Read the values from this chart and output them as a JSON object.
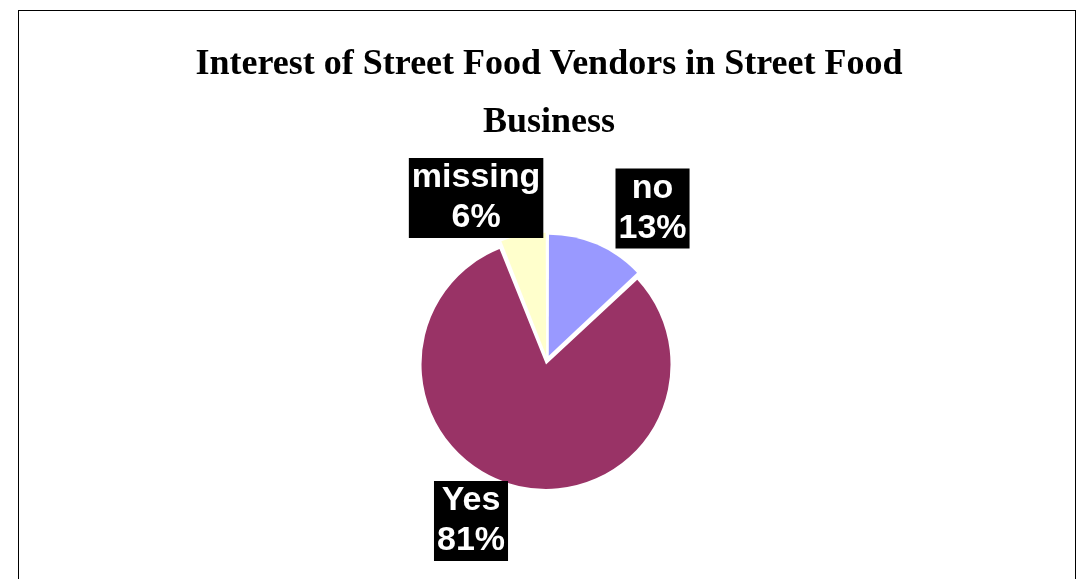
{
  "chart_data": {
    "type": "pie",
    "title": "Interest of Street Food Vendors in Street Food Business",
    "categories": [
      "no",
      "Yes",
      "missing"
    ],
    "values": [
      13,
      81,
      6
    ],
    "value_labels": [
      "13%",
      "81%",
      "6%"
    ],
    "colors": [
      "#9999ff",
      "#993366",
      "#ffffcc"
    ],
    "legend": false
  }
}
